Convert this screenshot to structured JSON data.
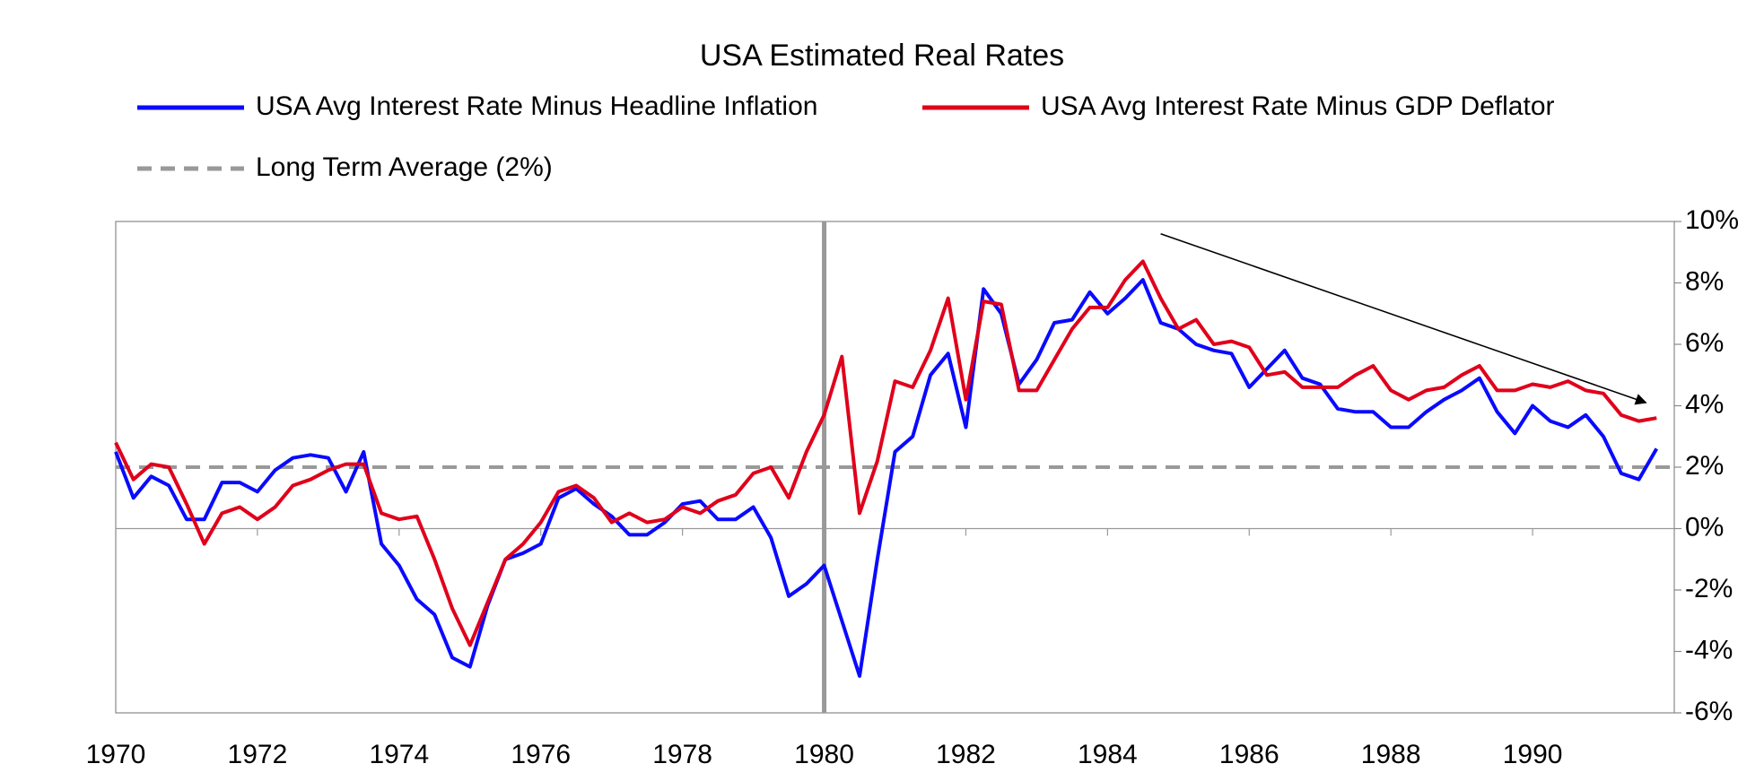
{
  "chart_data": {
    "type": "line",
    "title": "USA Estimated Real Rates",
    "x": [
      1970,
      1970.25,
      1970.5,
      1970.75,
      1971,
      1971.25,
      1971.5,
      1971.75,
      1972,
      1972.25,
      1972.5,
      1972.75,
      1973,
      1973.25,
      1973.5,
      1973.75,
      1974,
      1974.25,
      1974.5,
      1974.75,
      1975,
      1975.25,
      1975.5,
      1975.75,
      1976,
      1976.25,
      1976.5,
      1976.75,
      1977,
      1977.25,
      1977.5,
      1977.75,
      1978,
      1978.25,
      1978.5,
      1978.75,
      1979,
      1979.25,
      1979.5,
      1979.75,
      1980,
      1980.25,
      1980.5,
      1980.75,
      1981,
      1981.25,
      1981.5,
      1981.75,
      1982,
      1982.25,
      1982.5,
      1982.75,
      1983,
      1983.25,
      1983.5,
      1983.75,
      1984,
      1984.25,
      1984.5,
      1984.75,
      1985,
      1985.25,
      1985.5,
      1985.75,
      1986,
      1986.25,
      1986.5,
      1986.75,
      1987,
      1987.25,
      1987.5,
      1987.75,
      1988,
      1988.25,
      1988.5,
      1988.75,
      1989,
      1989.25,
      1989.5,
      1989.75,
      1990,
      1990.25,
      1990.5,
      1990.75,
      1991,
      1991.25,
      1991.5,
      1991.75
    ],
    "series": [
      {
        "name": "USA Avg Interest Rate Minus Headline Inflation",
        "color": "#0a0aff",
        "values": [
          2.5,
          1.0,
          1.7,
          1.4,
          0.3,
          0.3,
          1.5,
          1.5,
          1.2,
          1.9,
          2.3,
          2.4,
          2.3,
          1.2,
          2.5,
          -0.5,
          -1.2,
          -2.3,
          -2.8,
          -4.2,
          -4.5,
          -2.5,
          -1.0,
          -0.8,
          -0.5,
          1.0,
          1.3,
          0.8,
          0.4,
          -0.2,
          -0.2,
          0.2,
          0.8,
          0.9,
          0.3,
          0.3,
          0.7,
          -0.3,
          -2.2,
          -1.8,
          -1.2,
          -3.0,
          -4.8,
          -1.0,
          2.5,
          3.0,
          5.0,
          5.7,
          3.3,
          7.8,
          7.0,
          4.7,
          5.5,
          6.7,
          6.8,
          7.7,
          7.0,
          7.5,
          8.1,
          6.7,
          6.5,
          6.0,
          5.8,
          5.7,
          4.6,
          5.2,
          5.8,
          4.9,
          4.7,
          3.9,
          3.8,
          3.8,
          3.3,
          3.3,
          3.8,
          4.2,
          4.5,
          4.9,
          3.8,
          3.1,
          4.0,
          3.5,
          3.3,
          3.7,
          3.0,
          1.8,
          1.6,
          2.6
        ]
      },
      {
        "name": "USA Avg Interest Rate Minus GDP Deflator",
        "color": "#e0001b",
        "values": [
          2.8,
          1.6,
          2.1,
          2.0,
          0.8,
          -0.5,
          0.5,
          0.7,
          0.3,
          0.7,
          1.4,
          1.6,
          1.9,
          2.1,
          2.1,
          0.5,
          0.3,
          0.4,
          -1.0,
          -2.6,
          -3.8,
          -2.4,
          -1.0,
          -0.5,
          0.2,
          1.2,
          1.4,
          1.0,
          0.2,
          0.5,
          0.2,
          0.3,
          0.7,
          0.5,
          0.9,
          1.1,
          1.8,
          2.0,
          1.0,
          2.5,
          3.7,
          5.6,
          0.5,
          2.2,
          4.8,
          4.6,
          5.8,
          7.5,
          4.2,
          7.4,
          7.3,
          4.5,
          4.5,
          5.5,
          6.5,
          7.2,
          7.2,
          8.1,
          8.7,
          7.5,
          6.5,
          6.8,
          6.0,
          6.1,
          5.9,
          5.0,
          5.1,
          4.6,
          4.6,
          4.6,
          5.0,
          5.3,
          4.5,
          4.2,
          4.5,
          4.6,
          5.0,
          5.3,
          4.5,
          4.5,
          4.7,
          4.6,
          4.8,
          4.5,
          4.4,
          3.7,
          3.5,
          3.6
        ]
      },
      {
        "name": "Long Term Average (2%)",
        "color": "#999999",
        "dashed": true,
        "value": 2
      }
    ],
    "vline": 1980,
    "arrow": {
      "from": [
        1984.75,
        9.6
      ],
      "to": [
        1991.6,
        4.1
      ]
    },
    "xlim": [
      1970,
      1992
    ],
    "ylim": [
      -6,
      10
    ],
    "xticks": [
      1970,
      1972,
      1974,
      1976,
      1978,
      1980,
      1982,
      1984,
      1986,
      1988,
      1990
    ],
    "yticks": [
      {
        "value": -6,
        "label": "-6%"
      },
      {
        "value": -4,
        "label": "-4%"
      },
      {
        "value": -2,
        "label": "-2%"
      },
      {
        "value": 0,
        "label": "0%"
      },
      {
        "value": 2,
        "label": "2%"
      },
      {
        "value": 4,
        "label": "4%"
      },
      {
        "value": 6,
        "label": "6%"
      },
      {
        "value": 8,
        "label": "8%"
      },
      {
        "value": 10,
        "label": "10%"
      }
    ],
    "y_axis_side": "right",
    "grid": false
  }
}
